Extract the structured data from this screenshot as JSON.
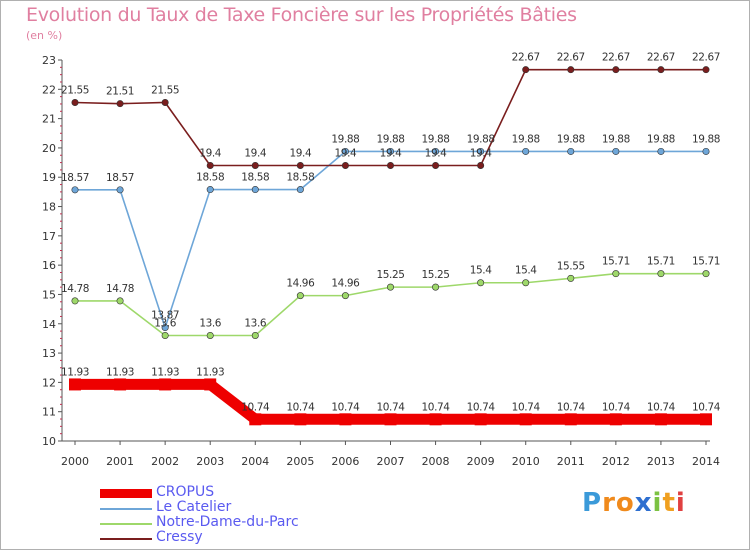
{
  "title": "Evolution du Taux de Taxe Foncière sur les Propriétés Bâties",
  "subtitle": "(en %)",
  "logo": {
    "letters": [
      "P",
      "r",
      "o",
      "x",
      "i",
      "t",
      "i"
    ],
    "colors": [
      "#3b9ad9",
      "#f08a1c",
      "#f08a1c",
      "#2e6fd0",
      "#7cc242",
      "#f0a020",
      "#e04040"
    ]
  },
  "chart_data": {
    "type": "line",
    "title": "Evolution du Taux de Taxe Foncière sur les Propriétés Bâties",
    "ylabel": "(en %)",
    "xlabel": "",
    "ylim": [
      10,
      23
    ],
    "yticks": [
      "10",
      "11",
      "12",
      "13",
      "14",
      "15",
      "16",
      "17",
      "18",
      "19",
      "20",
      "21",
      "22",
      "23"
    ],
    "categories": [
      "2000",
      "2001",
      "2002",
      "2003",
      "2004",
      "2005",
      "2006",
      "2007",
      "2008",
      "2009",
      "2010",
      "2011",
      "2012",
      "2013",
      "2014"
    ],
    "series": [
      {
        "name": "CROPUS",
        "color": "#ee0000",
        "values": [
          11.93,
          11.93,
          11.93,
          11.93,
          10.74,
          10.74,
          10.74,
          10.74,
          10.74,
          10.74,
          10.74,
          10.74,
          10.74,
          10.74,
          10.74
        ],
        "labels": [
          "11.93",
          "11.93",
          "11.93",
          "11.93",
          "10.74",
          "10.74",
          "10.74",
          "10.74",
          "10.74",
          "10.74",
          "10.74",
          "10.74",
          "10.74",
          "10.74",
          "10.74"
        ]
      },
      {
        "name": "Le Catelier",
        "color": "#6ea6d8",
        "values": [
          18.57,
          18.57,
          13.87,
          18.58,
          18.58,
          18.58,
          19.88,
          19.88,
          19.88,
          19.88,
          19.88,
          19.88,
          19.88,
          19.88,
          19.88
        ],
        "labels": [
          "18.57",
          "18.57",
          "13.87",
          "18.58",
          "18.58",
          "18.58",
          "19.88",
          "19.88",
          "19.88",
          "19.88",
          "19.88",
          "19.88",
          "19.88",
          "19.88",
          "19.88"
        ]
      },
      {
        "name": "Notre-Dame-du-Parc",
        "color": "#9ed86a",
        "values": [
          14.78,
          14.78,
          13.6,
          13.6,
          13.6,
          14.96,
          14.96,
          15.25,
          15.25,
          15.4,
          15.4,
          15.55,
          15.71,
          15.71,
          15.71
        ],
        "labels": [
          "14.78",
          "14.78",
          "13.6",
          "13.6",
          "13.6",
          "14.96",
          "14.96",
          "15.25",
          "15.25",
          "15.4",
          "15.4",
          "15.55",
          "15.71",
          "15.71",
          "15.71"
        ]
      },
      {
        "name": "Cressy",
        "color": "#7a1e1e",
        "values": [
          21.55,
          21.51,
          21.55,
          19.4,
          19.4,
          19.4,
          19.4,
          19.4,
          19.4,
          19.4,
          22.67,
          22.67,
          22.67,
          22.67,
          22.67
        ],
        "labels": [
          "21.55",
          "21.51",
          "21.55",
          "19.4",
          "19.4",
          "19.4",
          "19.4",
          "19.4",
          "19.4",
          "19.4",
          "22.67",
          "22.67",
          "22.67",
          "22.67",
          "22.67"
        ]
      }
    ]
  }
}
